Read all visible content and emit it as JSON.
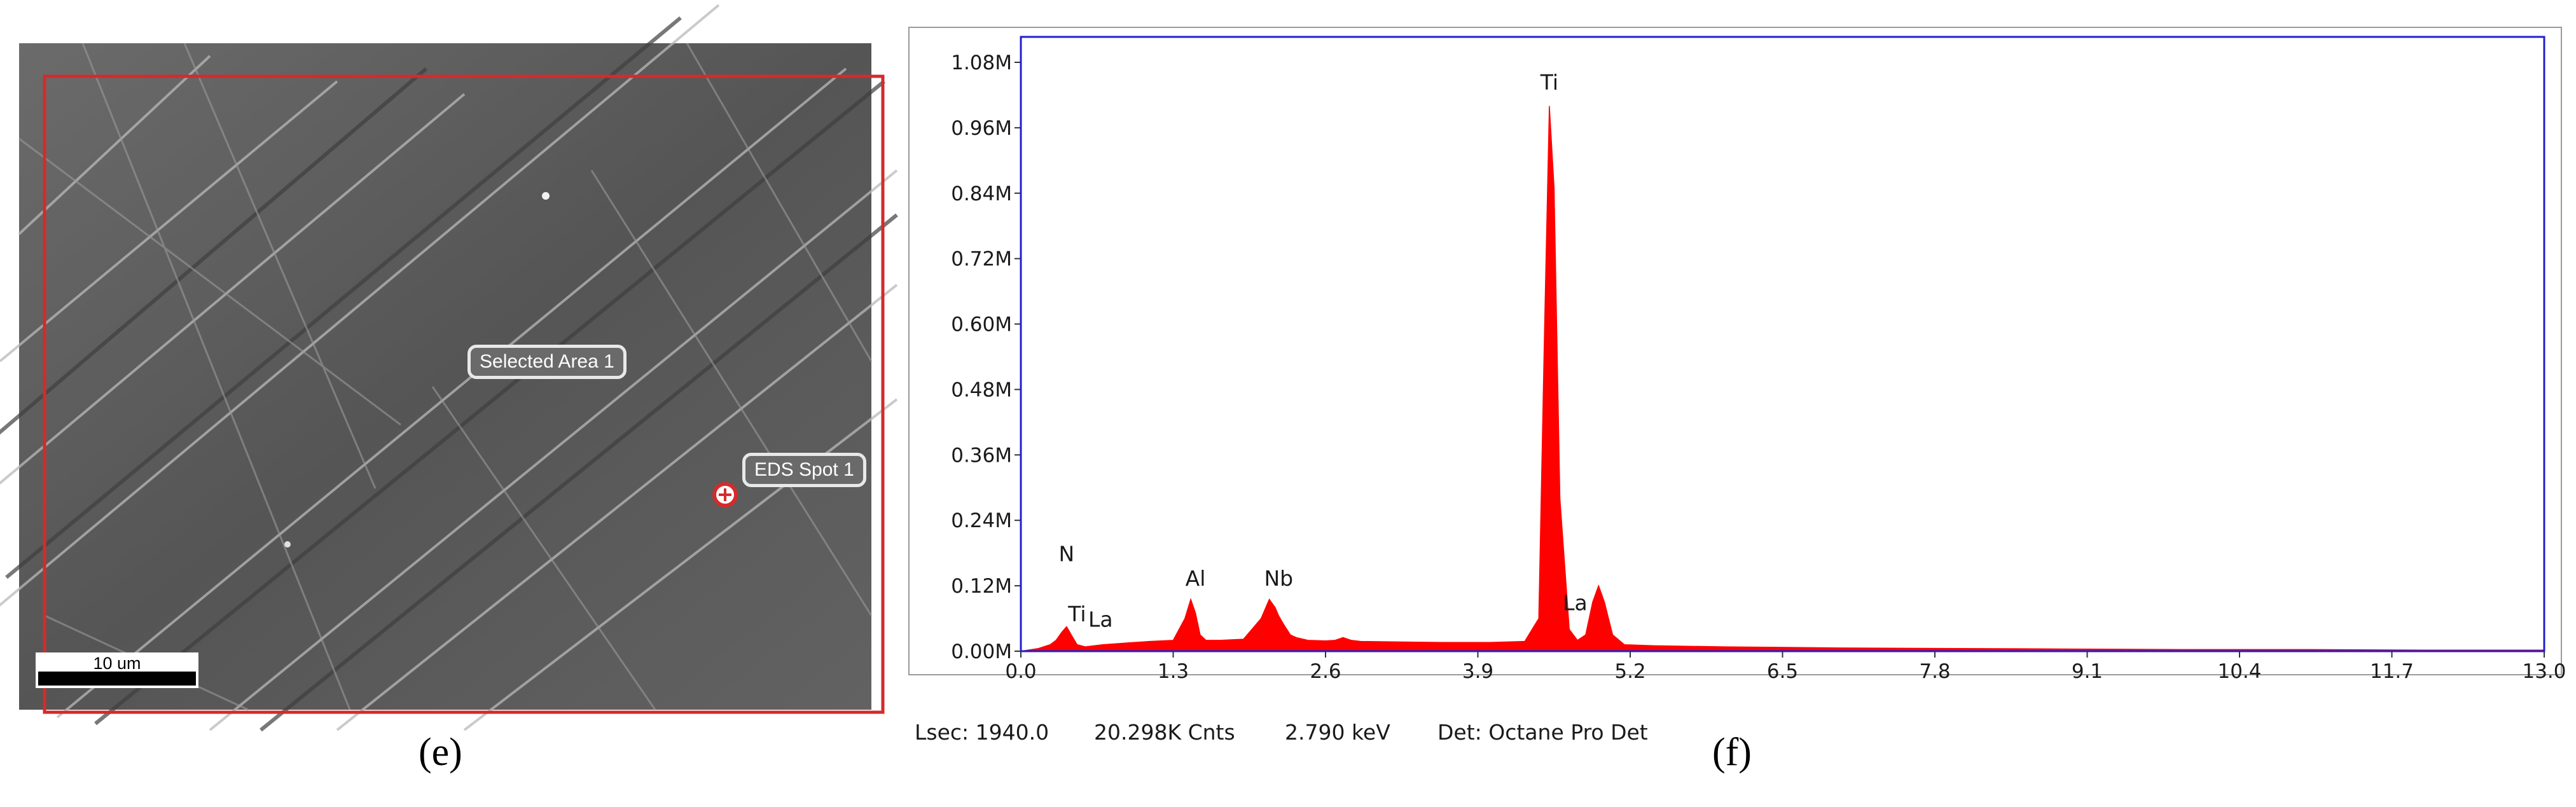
{
  "panels": {
    "sem": {
      "caption": "(e)",
      "roi_labels": {
        "selected_area": "Selected Area 1",
        "eds_spot": "EDS Spot 1"
      },
      "scale_bar": "10 um",
      "colors": {
        "roi": "#d42b2b",
        "background": "#5d5d5d"
      }
    },
    "spectrum": {
      "caption": "(f)"
    }
  },
  "status": {
    "lsec": "Lsec: 1940.0",
    "counts": "20.298K Cnts",
    "energy": "2.790 keV",
    "detector": "Det: Octane Pro Det"
  },
  "chart_data": {
    "type": "area",
    "title": "",
    "xlabel": "",
    "ylabel": "",
    "xlim": [
      0.0,
      13.0
    ],
    "ylim": [
      0,
      1.08
    ],
    "x_ticks": [
      "0.0",
      "1.3",
      "2.6",
      "3.9",
      "5.2",
      "6.5",
      "7.8",
      "9.1",
      "10.4",
      "11.7",
      "13.0"
    ],
    "y_ticks": [
      "0.00M",
      "0.12M",
      "0.24M",
      "0.36M",
      "0.48M",
      "0.60M",
      "0.72M",
      "0.84M",
      "0.96M",
      "1.08M"
    ],
    "y_unit": "M counts",
    "grid": false,
    "series": [
      {
        "color": "#ff0000",
        "x": [
          0.0,
          0.15,
          0.25,
          0.3,
          0.35,
          0.39,
          0.43,
          0.48,
          0.55,
          0.7,
          0.9,
          1.1,
          1.3,
          1.4,
          1.45,
          1.49,
          1.53,
          1.58,
          1.7,
          1.9,
          2.05,
          2.12,
          2.17,
          2.2,
          2.24,
          2.3,
          2.35,
          2.45,
          2.6,
          2.68,
          2.75,
          2.82,
          2.9,
          3.2,
          3.6,
          4.0,
          4.3,
          4.42,
          4.47,
          4.51,
          4.55,
          4.6,
          4.68,
          4.75,
          4.82,
          4.88,
          4.93,
          4.98,
          5.05,
          5.15,
          5.4,
          6.0,
          7.0,
          8.0,
          9.0,
          10.0,
          11.0,
          12.0,
          13.0
        ],
        "y": [
          0.0,
          0.005,
          0.012,
          0.02,
          0.035,
          0.045,
          0.03,
          0.012,
          0.008,
          0.012,
          0.015,
          0.018,
          0.02,
          0.06,
          0.095,
          0.07,
          0.03,
          0.02,
          0.02,
          0.022,
          0.06,
          0.095,
          0.08,
          0.065,
          0.05,
          0.03,
          0.025,
          0.02,
          0.019,
          0.02,
          0.025,
          0.02,
          0.018,
          0.017,
          0.016,
          0.016,
          0.018,
          0.06,
          0.6,
          1.0,
          0.85,
          0.28,
          0.04,
          0.02,
          0.03,
          0.09,
          0.12,
          0.09,
          0.03,
          0.012,
          0.01,
          0.008,
          0.006,
          0.005,
          0.004,
          0.003,
          0.003,
          0.002,
          0.002
        ]
      }
    ],
    "annotations": [
      {
        "text": "Ti",
        "x": 4.51,
        "y": 1.03
      },
      {
        "text": "N",
        "x": 0.39,
        "y": 0.165
      },
      {
        "text": "Ti",
        "x": 0.48,
        "y": 0.055
      },
      {
        "text": "La",
        "x": 0.68,
        "y": 0.045
      },
      {
        "text": "Al",
        "x": 1.49,
        "y": 0.12
      },
      {
        "text": "Nb",
        "x": 2.2,
        "y": 0.12
      },
      {
        "text": "La",
        "x": 4.73,
        "y": 0.075
      }
    ]
  }
}
